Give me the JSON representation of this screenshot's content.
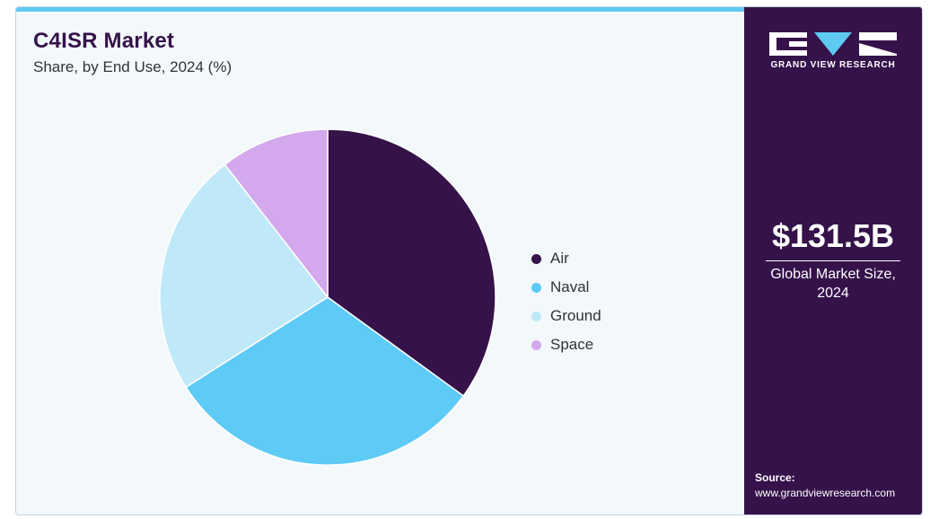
{
  "header": {
    "title": "C4ISR Market",
    "subtitle": "Share, by End Use, 2024 (%)"
  },
  "chart_data": {
    "type": "pie",
    "title": "C4ISR Market",
    "subtitle": "Share, by End Use, 2024 (%)",
    "categories": [
      "Air",
      "Naval",
      "Ground",
      "Space"
    ],
    "values": [
      35,
      31,
      23.5,
      10.5
    ],
    "colors": [
      "#35124a",
      "#5ecaf6",
      "#bfe9f9",
      "#d4a8ec"
    ],
    "legend_position": "right"
  },
  "sidebar": {
    "logo_text": "GRAND VIEW RESEARCH",
    "logo_icon": "gvr-logo-icon",
    "market_value": "$131.5B",
    "market_label": "Global Market Size, 2024",
    "source_label": "Source:",
    "source_url": "www.grandviewresearch.com"
  },
  "colors": {
    "brand": "#35124a",
    "accent": "#5ec9f1",
    "background": "#f3f8fb"
  }
}
